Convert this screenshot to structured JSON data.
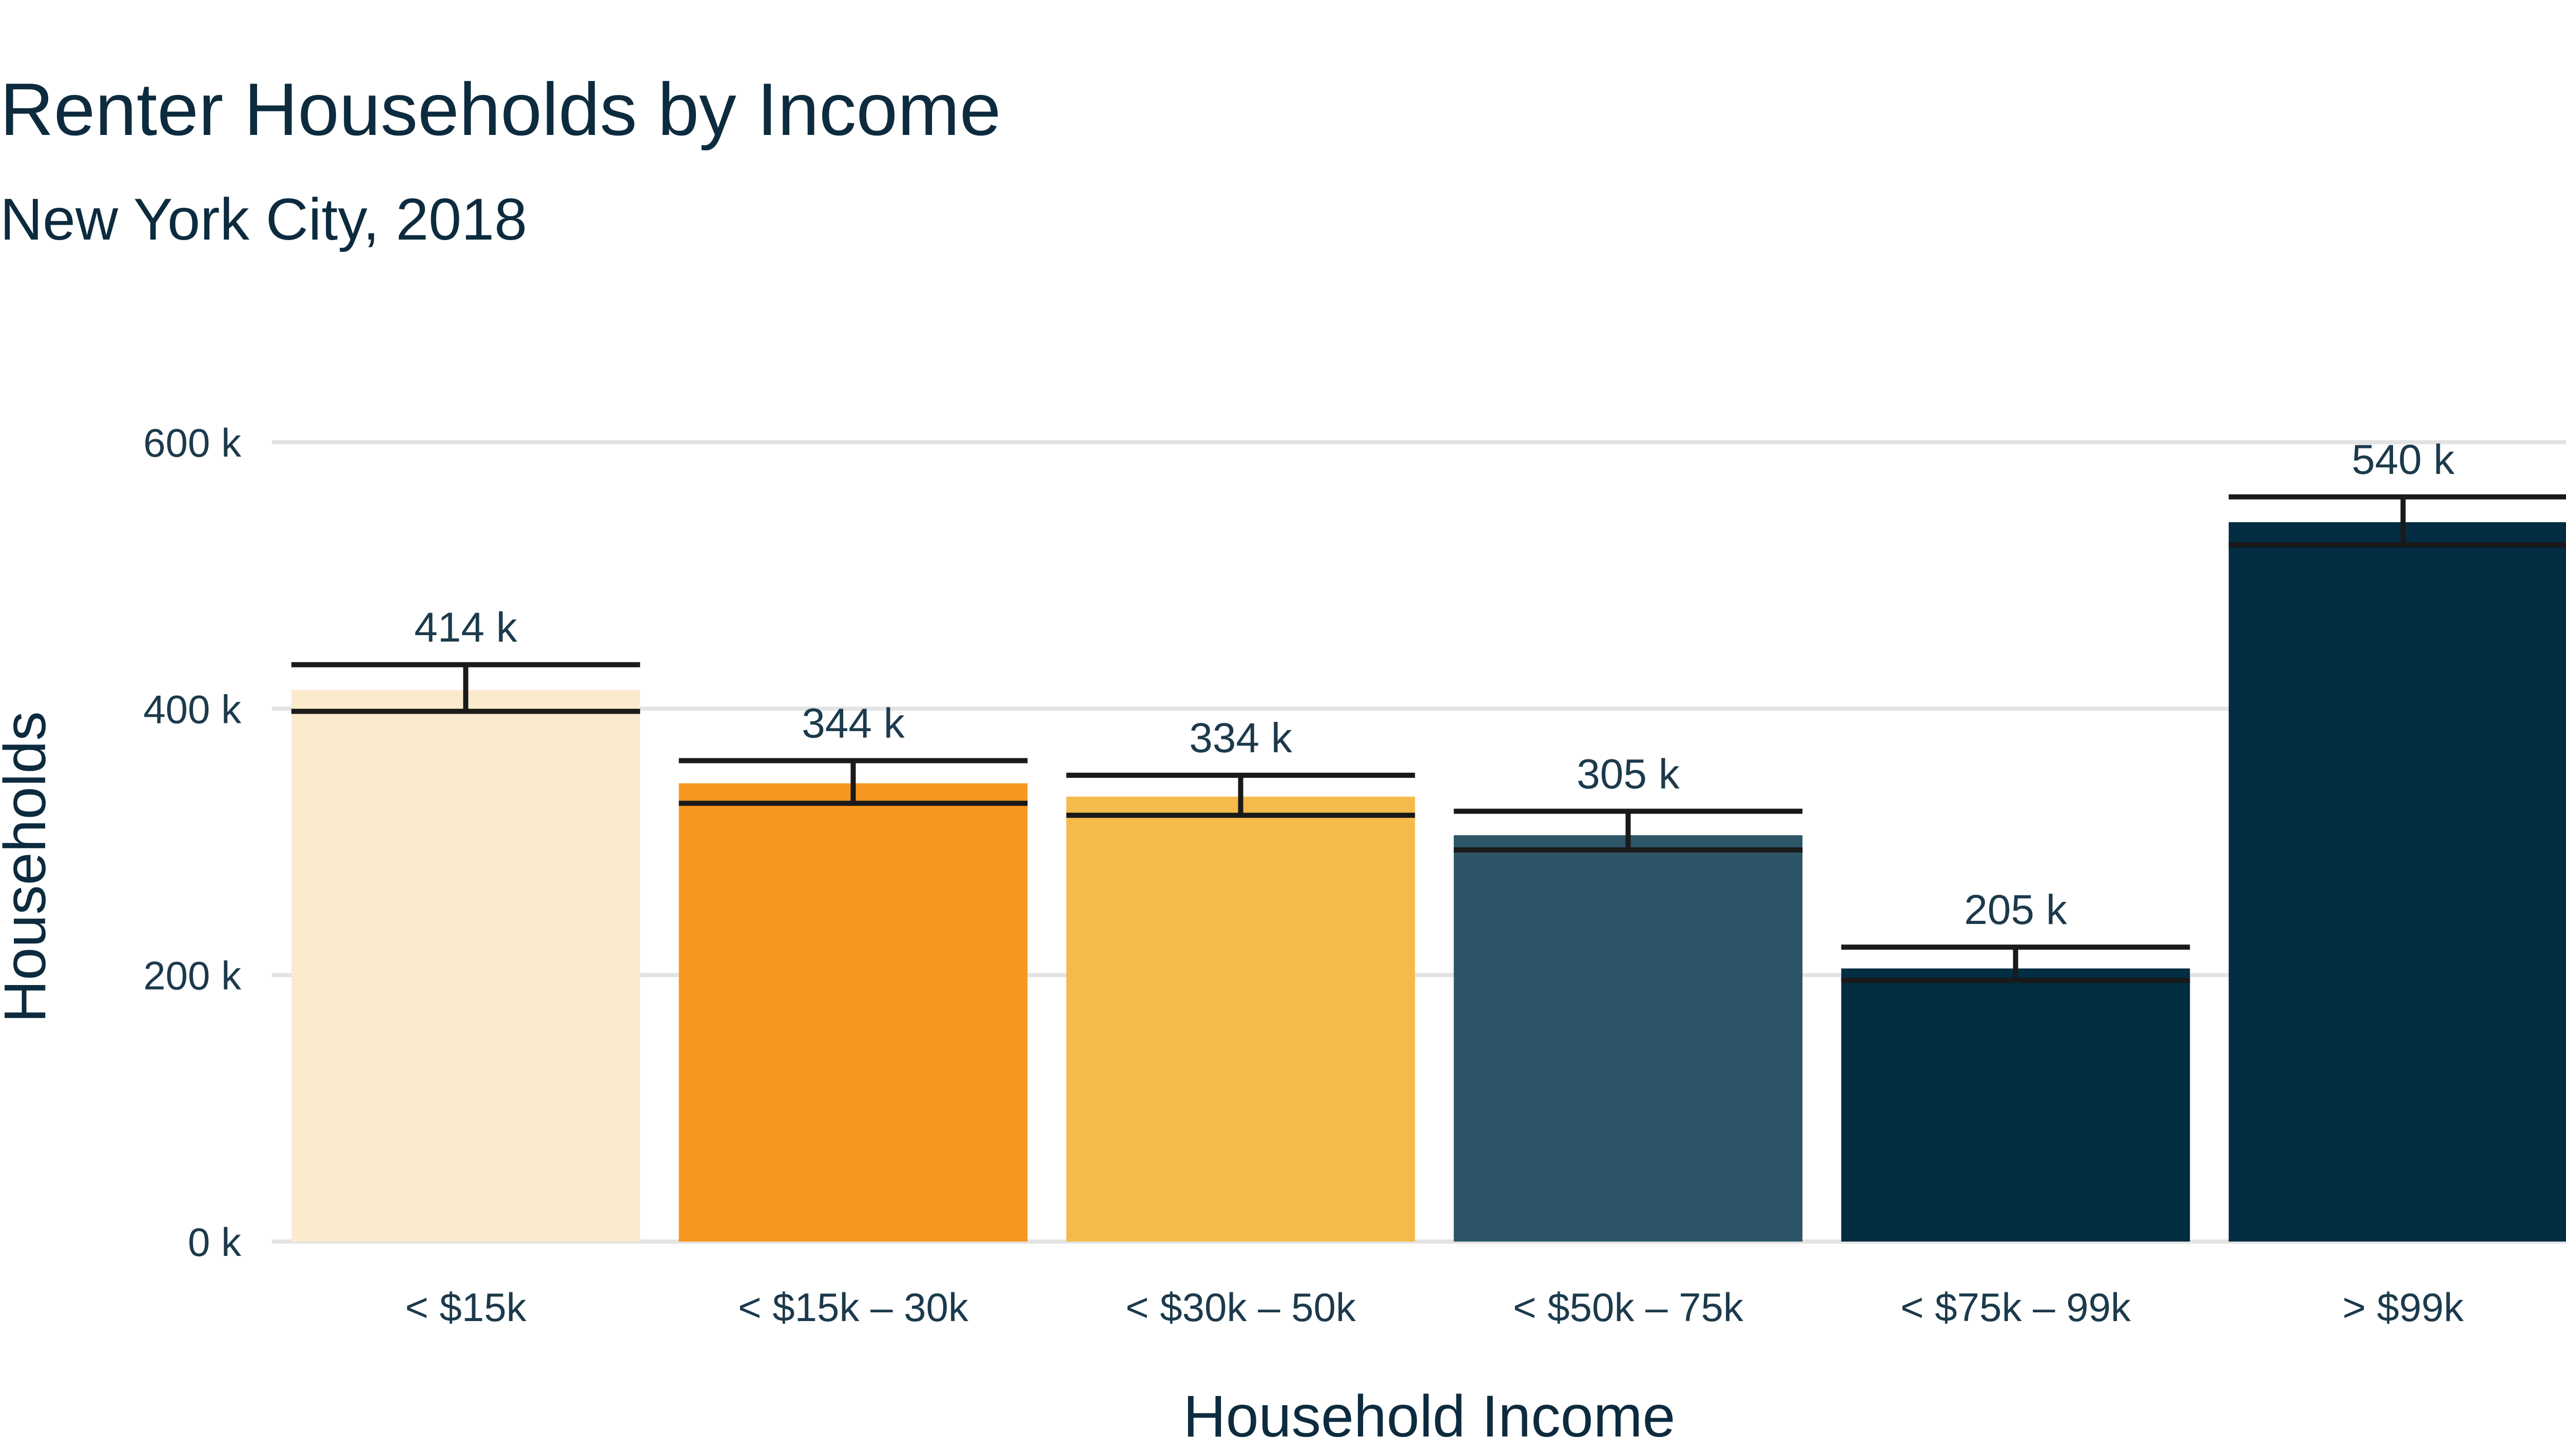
{
  "chart_data": {
    "type": "bar",
    "title": "Renter Households by Income",
    "subtitle": "New York City, 2018",
    "xlabel": "Household Income",
    "ylabel": "Households",
    "categories": [
      "< $15k",
      "< $15k – 30k",
      "< $30k – 50k",
      "< $50k – 75k",
      "< $75k – 99k",
      "> $99k"
    ],
    "values": [
      414,
      344,
      334,
      305,
      205,
      540
    ],
    "value_labels": [
      "414 k",
      "344 k",
      "334 k",
      "305 k",
      "205 k",
      "540 k"
    ],
    "error_low": [
      398,
      329,
      320,
      294,
      196,
      523
    ],
    "error_high": [
      433,
      361,
      350,
      323,
      221,
      559
    ],
    "colors": [
      "#fbebcd",
      "#f7971f",
      "#f4bb4c",
      "#2d5568",
      "#022d42",
      "#022d42"
    ],
    "yticks": [
      0,
      200,
      400,
      600
    ],
    "ytick_labels": [
      "0 k",
      "200 k",
      "400 k",
      "600 k"
    ],
    "ylim": [
      0,
      600
    ],
    "grid": true,
    "legend": "none"
  }
}
